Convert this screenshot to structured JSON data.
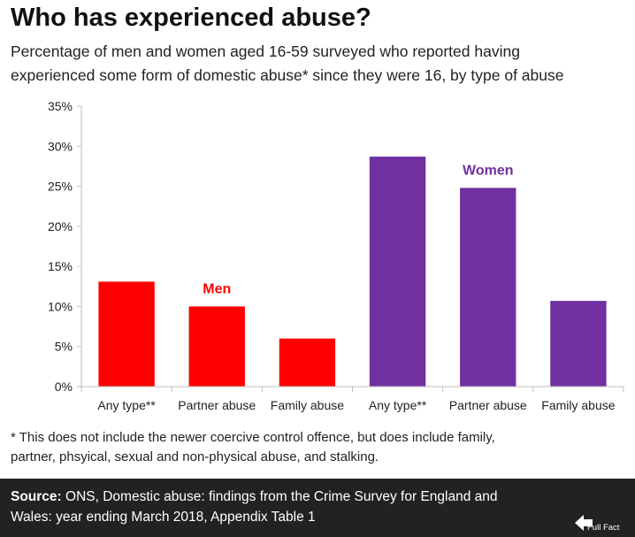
{
  "title": "Who has experienced abuse?",
  "subtitle": {
    "line1": "Percentage of men and women aged 16-59 surveyed who reported having",
    "line2": "experienced some form of domestic abuse* since they were 16, by type of abuse"
  },
  "footnote": {
    "line1": "* This does not include the newer coercive control offence, but does include family,",
    "line2": "partner, phsyical, sexual and non-physical abuse, and stalking."
  },
  "source": {
    "label": "Source:",
    "line1": " ONS, Domestic abuse: findings from the Crime Survey for England and",
    "line2": "Wales: year ending March 2018, Appendix Table 1",
    "logo_text": "Full Fact"
  },
  "colors": {
    "men": "#ff0000",
    "women": "#7030a0",
    "axis": "#bfbfbf",
    "footer": "#222222"
  },
  "chart_data": {
    "type": "bar",
    "title": "Who has experienced abuse?",
    "categories": [
      "Any type**",
      "Partner abuse",
      "Family abuse",
      "Any type**",
      "Partner abuse",
      "Family abuse"
    ],
    "series": [
      {
        "name": "Men",
        "values": [
          13.1,
          10.0,
          6.0,
          null,
          null,
          null
        ]
      },
      {
        "name": "Women",
        "values": [
          null,
          null,
          null,
          28.7,
          24.8,
          10.7
        ]
      }
    ],
    "ylim": [
      0,
      35
    ],
    "yticks": [
      0,
      5,
      10,
      15,
      20,
      25,
      30,
      35
    ],
    "ytick_labels": [
      "0%",
      "5%",
      "10%",
      "15%",
      "20%",
      "25%",
      "30%",
      "35%"
    ],
    "xlabel": "",
    "ylabel": "",
    "grid": false
  }
}
